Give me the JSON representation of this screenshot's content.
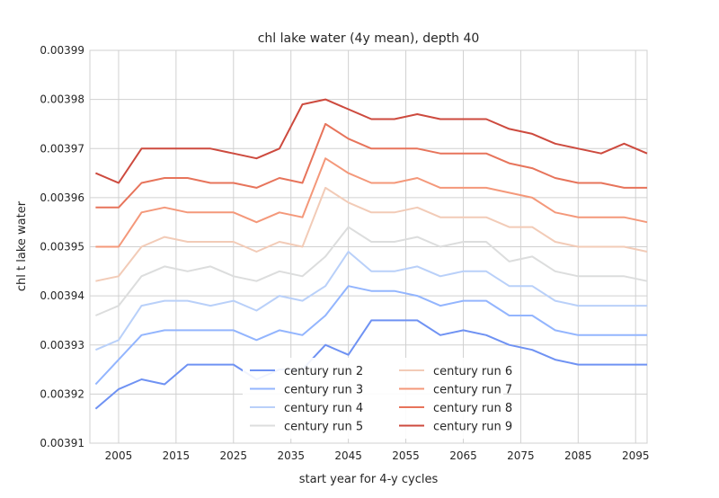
{
  "chart_data": {
    "type": "line",
    "title": "chl lake water (4y mean), depth 40",
    "xlabel": "start year for 4-y cycles",
    "ylabel": "chl t lake water",
    "xlim": [
      2000,
      2097
    ],
    "ylim": [
      0.00391,
      0.00399
    ],
    "xticks": [
      2005,
      2015,
      2025,
      2035,
      2045,
      2055,
      2065,
      2075,
      2085,
      2095
    ],
    "yticks": [
      0.00391,
      0.00392,
      0.00393,
      0.00394,
      0.00395,
      0.00396,
      0.00397,
      0.00398,
      0.00399
    ],
    "ytick_labels": [
      "0.00391",
      "0.00392",
      "0.00393",
      "0.00394",
      "0.00395",
      "0.00396",
      "0.00397",
      "0.00398",
      "0.00399"
    ],
    "grid": true,
    "legend_placement": "lower-center",
    "x": [
      2001,
      2005,
      2009,
      2013,
      2017,
      2021,
      2025,
      2029,
      2033,
      2037,
      2041,
      2045,
      2049,
      2053,
      2057,
      2061,
      2065,
      2069,
      2073,
      2077,
      2081,
      2085,
      2089,
      2093,
      2097
    ],
    "series": [
      {
        "name": "century run 2",
        "color": "#6f92f3",
        "values": [
          0.003917,
          0.003921,
          0.003923,
          0.003922,
          0.003926,
          0.003926,
          0.003926,
          0.003923,
          0.003925,
          0.003925,
          0.00393,
          0.003928,
          0.003935,
          0.003935,
          0.003935,
          0.003932,
          0.003933,
          0.003932,
          0.00393,
          0.003929,
          0.003927,
          0.003926,
          0.003926,
          0.003926,
          0.003926
        ]
      },
      {
        "name": "century run 3",
        "color": "#93b5fe",
        "values": [
          0.003922,
          0.003927,
          0.003932,
          0.003933,
          0.003933,
          0.003933,
          0.003933,
          0.003931,
          0.003933,
          0.003932,
          0.003936,
          0.003942,
          0.003941,
          0.003941,
          0.00394,
          0.003938,
          0.003939,
          0.003939,
          0.003936,
          0.003936,
          0.003933,
          0.003932,
          0.003932,
          0.003932,
          0.003932
        ]
      },
      {
        "name": "century run 4",
        "color": "#b9d0f9",
        "values": [
          0.003929,
          0.003931,
          0.003938,
          0.003939,
          0.003939,
          0.003938,
          0.003939,
          0.003937,
          0.00394,
          0.003939,
          0.003942,
          0.003949,
          0.003945,
          0.003945,
          0.003946,
          0.003944,
          0.003945,
          0.003945,
          0.003942,
          0.003942,
          0.003939,
          0.003938,
          0.003938,
          0.003938,
          0.003938
        ]
      },
      {
        "name": "century run 5",
        "color": "#dcdddd",
        "values": [
          0.003936,
          0.003938,
          0.003944,
          0.003946,
          0.003945,
          0.003946,
          0.003944,
          0.003943,
          0.003945,
          0.003944,
          0.003948,
          0.003954,
          0.003951,
          0.003951,
          0.003952,
          0.00395,
          0.003951,
          0.003951,
          0.003947,
          0.003948,
          0.003945,
          0.003944,
          0.003944,
          0.003944,
          0.003943
        ]
      },
      {
        "name": "century run 6",
        "color": "#f2cbb7",
        "values": [
          0.003943,
          0.003944,
          0.00395,
          0.003952,
          0.003951,
          0.003951,
          0.003951,
          0.003949,
          0.003951,
          0.00395,
          0.003962,
          0.003959,
          0.003957,
          0.003957,
          0.003958,
          0.003956,
          0.003956,
          0.003956,
          0.003954,
          0.003954,
          0.003951,
          0.00395,
          0.00395,
          0.00395,
          0.003949
        ]
      },
      {
        "name": "century run 7",
        "color": "#f4987a",
        "values": [
          0.00395,
          0.00395,
          0.003957,
          0.003958,
          0.003957,
          0.003957,
          0.003957,
          0.003955,
          0.003957,
          0.003956,
          0.003968,
          0.003965,
          0.003963,
          0.003963,
          0.003964,
          0.003962,
          0.003962,
          0.003962,
          0.003961,
          0.00396,
          0.003957,
          0.003956,
          0.003956,
          0.003956,
          0.003955
        ]
      },
      {
        "name": "century run 8",
        "color": "#e7745b",
        "values": [
          0.003958,
          0.003958,
          0.003963,
          0.003964,
          0.003964,
          0.003963,
          0.003963,
          0.003962,
          0.003964,
          0.003963,
          0.003975,
          0.003972,
          0.00397,
          0.00397,
          0.00397,
          0.003969,
          0.003969,
          0.003969,
          0.003967,
          0.003966,
          0.003964,
          0.003963,
          0.003963,
          0.003962,
          0.003962
        ]
      },
      {
        "name": "century run 9",
        "color": "#cd4a3e",
        "values": [
          0.003965,
          0.003963,
          0.00397,
          0.00397,
          0.00397,
          0.00397,
          0.003969,
          0.003968,
          0.00397,
          0.003979,
          0.00398,
          0.003978,
          0.003976,
          0.003976,
          0.003977,
          0.003976,
          0.003976,
          0.003976,
          0.003974,
          0.003973,
          0.003971,
          0.00397,
          0.003969,
          0.003971,
          0.003969
        ]
      }
    ]
  }
}
